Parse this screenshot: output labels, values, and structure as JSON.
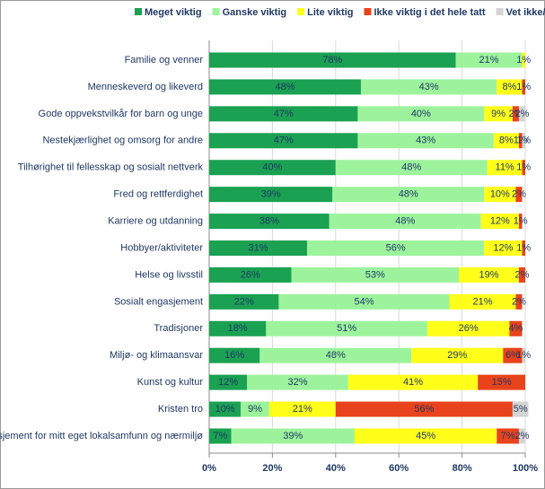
{
  "chart_data": {
    "type": "stacked_barh",
    "categories": [
      "Familie og venner",
      "Menneskeverd og likeverd",
      "Gode oppvekstvilkår for barn og unge",
      "Nestekjærlighet og omsorg for andre",
      "Tilhørighet til fellesskap og sosialt nettverk",
      "Fred og rettferdighet",
      "Karriere og utdanning",
      "Hobbyer/aktiviteter",
      "Helse og livsstil",
      "Sosialt engasjement",
      "Tradisjoner",
      "Miljø- og klimaansvar",
      "Kunst og kultur",
      "Kristen tro",
      "Engasjement for mitt eget lokalsamfunn og nærmiljø"
    ],
    "series": [
      {
        "name": "Meget viktig",
        "color": "#1aa152",
        "values": [
          78,
          48,
          47,
          47,
          40,
          39,
          38,
          31,
          26,
          22,
          18,
          16,
          12,
          10,
          7
        ],
        "value_labels": [
          "78%",
          "48%",
          "47%",
          "47%",
          "40%",
          "39%",
          "38%",
          "31%",
          "26%",
          "22%",
          "18%",
          "16%",
          "12%",
          "10%",
          "7%"
        ]
      },
      {
        "name": "Ganske viktig",
        "color": "#9cf39c",
        "values": [
          21,
          43,
          40,
          43,
          48,
          48,
          48,
          56,
          53,
          54,
          51,
          48,
          32,
          9,
          39
        ],
        "value_labels": [
          "21%",
          "43%",
          "40%",
          "43%",
          "48%",
          "48%",
          "48%",
          "56%",
          "53%",
          "54%",
          "51%",
          "48%",
          "32%",
          "9%",
          "39%"
        ]
      },
      {
        "name": "Lite viktig",
        "color": "#ffff1a",
        "values": [
          1,
          8,
          9,
          8,
          11,
          10,
          12,
          12,
          19,
          21,
          26,
          29,
          41,
          21,
          45
        ],
        "value_labels": [
          "1%",
          "8%",
          "9%",
          "8%",
          "11%",
          "10%",
          "12%",
          "12%",
          "19%",
          "21%",
          "26%",
          "29%",
          "41%",
          "21%",
          "45%"
        ]
      },
      {
        "name": "Ikke viktig i det hele tatt",
        "color": "#e8431c",
        "values": [
          null,
          1,
          2,
          1,
          1,
          2,
          1,
          1,
          2,
          2,
          4,
          6,
          15,
          56,
          7
        ],
        "value_labels": [
          null,
          "1%",
          "2%",
          "1%",
          "1%",
          "2%",
          "1%",
          "1%",
          "2%",
          "2%",
          "4%",
          "6%",
          "15%",
          "56%",
          "7%"
        ]
      },
      {
        "name": "Vet ikke/ikke aktuelt",
        "color": "#d4d4d4",
        "values": [
          null,
          null,
          2,
          1,
          null,
          null,
          null,
          null,
          null,
          null,
          null,
          1,
          null,
          5,
          2
        ],
        "value_labels": [
          null,
          null,
          "2%",
          "1%",
          null,
          null,
          null,
          null,
          null,
          null,
          null,
          "1%",
          null,
          "5%",
          "2%"
        ]
      }
    ],
    "xlim": [
      0,
      100
    ],
    "xticks": [
      {
        "value": 0,
        "label": "0%"
      },
      {
        "value": 20,
        "label": "20%"
      },
      {
        "value": 40,
        "label": "40%"
      },
      {
        "value": 60,
        "label": "60%"
      },
      {
        "value": 80,
        "label": "80%"
      },
      {
        "value": 100,
        "label": "100%"
      }
    ],
    "grid": true
  }
}
